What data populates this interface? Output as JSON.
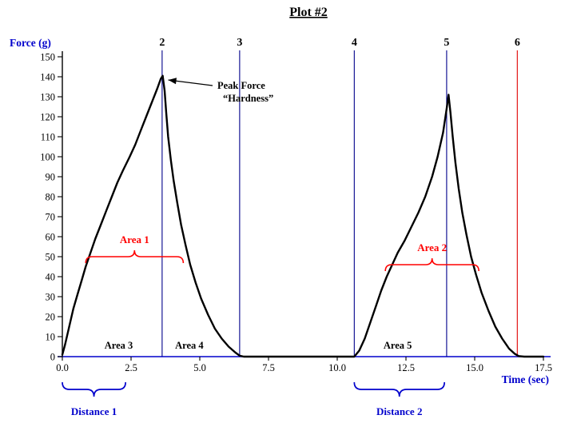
{
  "chart_data": {
    "type": "line",
    "title": "Plot #2",
    "xlabel": "Time (sec)",
    "ylabel": "Force (g)",
    "xlim": [
      0,
      17.5
    ],
    "ylim": [
      0,
      150
    ],
    "grid": false,
    "legend": "none",
    "x_ticks": [
      "0.0",
      "2.5",
      "5.0",
      "7.5",
      "10.0",
      "12.5",
      "15.0",
      "17.5"
    ],
    "y_ticks": [
      "0",
      "10",
      "20",
      "30",
      "40",
      "50",
      "60",
      "70",
      "80",
      "90",
      "100",
      "110",
      "120",
      "130",
      "140",
      "150"
    ],
    "colors": {
      "axis_blue": "#0000CC",
      "label_blue": "#0000CC",
      "event_line_blue": "#00008B",
      "event_line_red": "#E00000",
      "annotation_red": "#FF0000",
      "curve_black": "#000000"
    },
    "event_lines": [
      {
        "label": "2",
        "time": 3.63,
        "color": "#00008B"
      },
      {
        "label": "3",
        "time": 6.45,
        "color": "#00008B"
      },
      {
        "label": "4",
        "time": 10.62,
        "color": "#00008B"
      },
      {
        "label": "5",
        "time": 13.98,
        "color": "#00008B"
      },
      {
        "label": "6",
        "time": 16.55,
        "color": "#E00000"
      }
    ],
    "series": [
      {
        "name": "Force",
        "color": "#000000",
        "points": [
          [
            0,
            1
          ],
          [
            0.1,
            6
          ],
          [
            0.25,
            15
          ],
          [
            0.4,
            24
          ],
          [
            0.55,
            31
          ],
          [
            0.7,
            38
          ],
          [
            0.85,
            45
          ],
          [
            1.0,
            51
          ],
          [
            1.2,
            59
          ],
          [
            1.4,
            66
          ],
          [
            1.6,
            73
          ],
          [
            1.8,
            80
          ],
          [
            2.0,
            87
          ],
          [
            2.2,
            93
          ],
          [
            2.45,
            100
          ],
          [
            2.65,
            106
          ],
          [
            2.85,
            113
          ],
          [
            3.05,
            120
          ],
          [
            3.25,
            127
          ],
          [
            3.45,
            134
          ],
          [
            3.58,
            139
          ],
          [
            3.65,
            140.5
          ],
          [
            3.72,
            133
          ],
          [
            3.78,
            122
          ],
          [
            3.85,
            110
          ],
          [
            3.95,
            98
          ],
          [
            4.05,
            88
          ],
          [
            4.18,
            77
          ],
          [
            4.32,
            66
          ],
          [
            4.48,
            56
          ],
          [
            4.65,
            46
          ],
          [
            4.85,
            37
          ],
          [
            5.05,
            29
          ],
          [
            5.3,
            21
          ],
          [
            5.55,
            14
          ],
          [
            5.8,
            9
          ],
          [
            6.05,
            5
          ],
          [
            6.3,
            2
          ],
          [
            6.45,
            0.5
          ],
          [
            6.6,
            0
          ],
          [
            7.5,
            0
          ],
          [
            8.5,
            0
          ],
          [
            9.5,
            0
          ],
          [
            10.3,
            0
          ],
          [
            10.62,
            0
          ],
          [
            10.8,
            3
          ],
          [
            11.0,
            9
          ],
          [
            11.2,
            17
          ],
          [
            11.4,
            25
          ],
          [
            11.6,
            33
          ],
          [
            11.8,
            40
          ],
          [
            12.0,
            46
          ],
          [
            12.2,
            52
          ],
          [
            12.45,
            58
          ],
          [
            12.7,
            65
          ],
          [
            12.95,
            72
          ],
          [
            13.2,
            80
          ],
          [
            13.45,
            90
          ],
          [
            13.65,
            100
          ],
          [
            13.85,
            112
          ],
          [
            13.98,
            124
          ],
          [
            14.05,
            131
          ],
          [
            14.12,
            122
          ],
          [
            14.2,
            110
          ],
          [
            14.3,
            97
          ],
          [
            14.42,
            84
          ],
          [
            14.55,
            72
          ],
          [
            14.7,
            61
          ],
          [
            14.87,
            50
          ],
          [
            15.05,
            41
          ],
          [
            15.25,
            32
          ],
          [
            15.5,
            23
          ],
          [
            15.75,
            15
          ],
          [
            16.0,
            9
          ],
          [
            16.25,
            4
          ],
          [
            16.45,
            1.5
          ],
          [
            16.6,
            0.3
          ],
          [
            16.8,
            0
          ],
          [
            17.2,
            0
          ],
          [
            17.5,
            0
          ]
        ]
      }
    ],
    "annotations": {
      "peak": {
        "lines": [
          "Peak Force",
          "“Hardness”"
        ],
        "points_to": {
          "time": 3.65,
          "force": 140
        }
      },
      "areas": [
        {
          "label": "Area 1",
          "color": "#FF0000",
          "brace": {
            "t1": 0.85,
            "t2": 4.4,
            "force": 50
          }
        },
        {
          "label": "Area 2",
          "color": "#FF0000",
          "brace": {
            "t1": 11.75,
            "t2": 15.15,
            "force": 46
          }
        }
      ],
      "area_text": [
        {
          "label": "Area 3",
          "t": 2.05,
          "force": 4
        },
        {
          "label": "Area 4",
          "t": 4.62,
          "force": 4
        },
        {
          "label": "Area 5",
          "t": 12.2,
          "force": 4
        }
      ],
      "distances": [
        {
          "label": "Distance 1",
          "t1": 0.0,
          "t2": 2.3
        },
        {
          "label": "Distance 2",
          "t1": 10.62,
          "t2": 13.9
        }
      ]
    }
  }
}
